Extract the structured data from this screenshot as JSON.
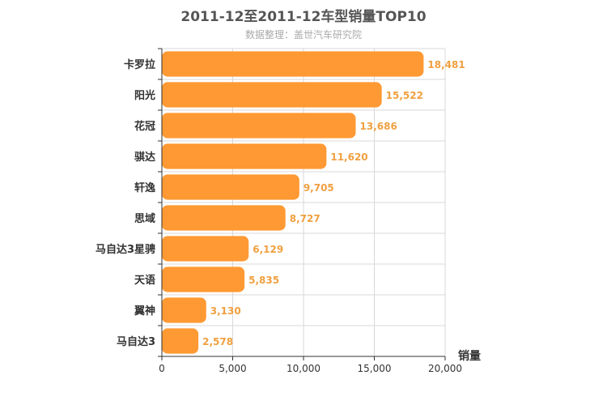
{
  "chart_data": {
    "type": "bar",
    "orientation": "horizontal",
    "title": "2011-12至2011-12车型销量TOP10",
    "subtitle": "数据整理：盖世汽车研究院",
    "xlabel": "销量",
    "xlim": [
      0,
      20000
    ],
    "ticks": [
      "0",
      "5,000",
      "10,000",
      "15,000",
      "20,000"
    ],
    "tick_values": [
      0,
      5000,
      10000,
      15000,
      20000
    ],
    "categories": [
      "卡罗拉",
      "阳光",
      "花冠",
      "骐达",
      "轩逸",
      "思域",
      "马自达3星骋",
      "天语",
      "翼神",
      "马自达3"
    ],
    "values": [
      18481,
      15522,
      13686,
      11620,
      9705,
      8727,
      6129,
      5835,
      3130,
      2578
    ],
    "value_labels": [
      "18,481",
      "15,522",
      "13,686",
      "11,620",
      "9,705",
      "8,727",
      "6,129",
      "5,835",
      "3,130",
      "2,578"
    ],
    "grid": true,
    "bar_color": "#ff9933",
    "label_color": "#f0a040"
  }
}
